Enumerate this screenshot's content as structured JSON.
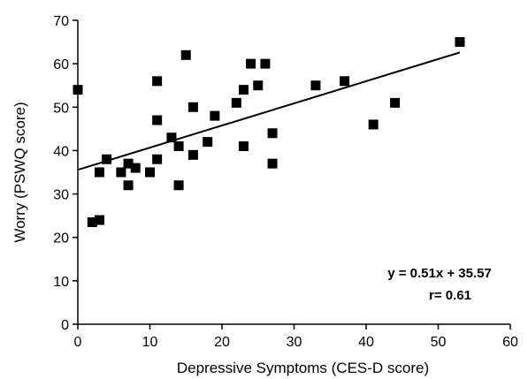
{
  "chart_data": {
    "type": "scatter",
    "title": "",
    "xlabel": "Depressive Symptoms (CES-D score)",
    "ylabel": "Worry (PSWQ score)",
    "xlim": [
      0,
      60
    ],
    "ylim": [
      0,
      70
    ],
    "xticks": [
      0,
      10,
      20,
      30,
      40,
      50,
      60
    ],
    "yticks": [
      0,
      10,
      20,
      30,
      40,
      50,
      60,
      70
    ],
    "grid": false,
    "marker": "square",
    "colors": {
      "marker": "#000000",
      "trendline": "#000000",
      "axis": "#000000"
    },
    "series": [
      {
        "points": [
          [
            0,
            54
          ],
          [
            2,
            23.5
          ],
          [
            3,
            24
          ],
          [
            3,
            35
          ],
          [
            4,
            38
          ],
          [
            6,
            35
          ],
          [
            7,
            32
          ],
          [
            7,
            37
          ],
          [
            8,
            36
          ],
          [
            10,
            35
          ],
          [
            11,
            56
          ],
          [
            11,
            47
          ],
          [
            11,
            38
          ],
          [
            13,
            43
          ],
          [
            14,
            32
          ],
          [
            14,
            41
          ],
          [
            15,
            62
          ],
          [
            16,
            50
          ],
          [
            16,
            39
          ],
          [
            18,
            42
          ],
          [
            19,
            48
          ],
          [
            22,
            51
          ],
          [
            23,
            54
          ],
          [
            23,
            41
          ],
          [
            24,
            60
          ],
          [
            25,
            55
          ],
          [
            26,
            60
          ],
          [
            27,
            44
          ],
          [
            27,
            37
          ],
          [
            33,
            55
          ],
          [
            37,
            56
          ],
          [
            41,
            46
          ],
          [
            44,
            51
          ],
          [
            53,
            65
          ]
        ]
      }
    ],
    "trendline": {
      "slope": 0.51,
      "intercept": 35.57,
      "x_range": [
        0,
        53
      ]
    },
    "annotations": {
      "equation": "y = 0.51x + 35.57",
      "correlation": "r= 0.61"
    }
  }
}
